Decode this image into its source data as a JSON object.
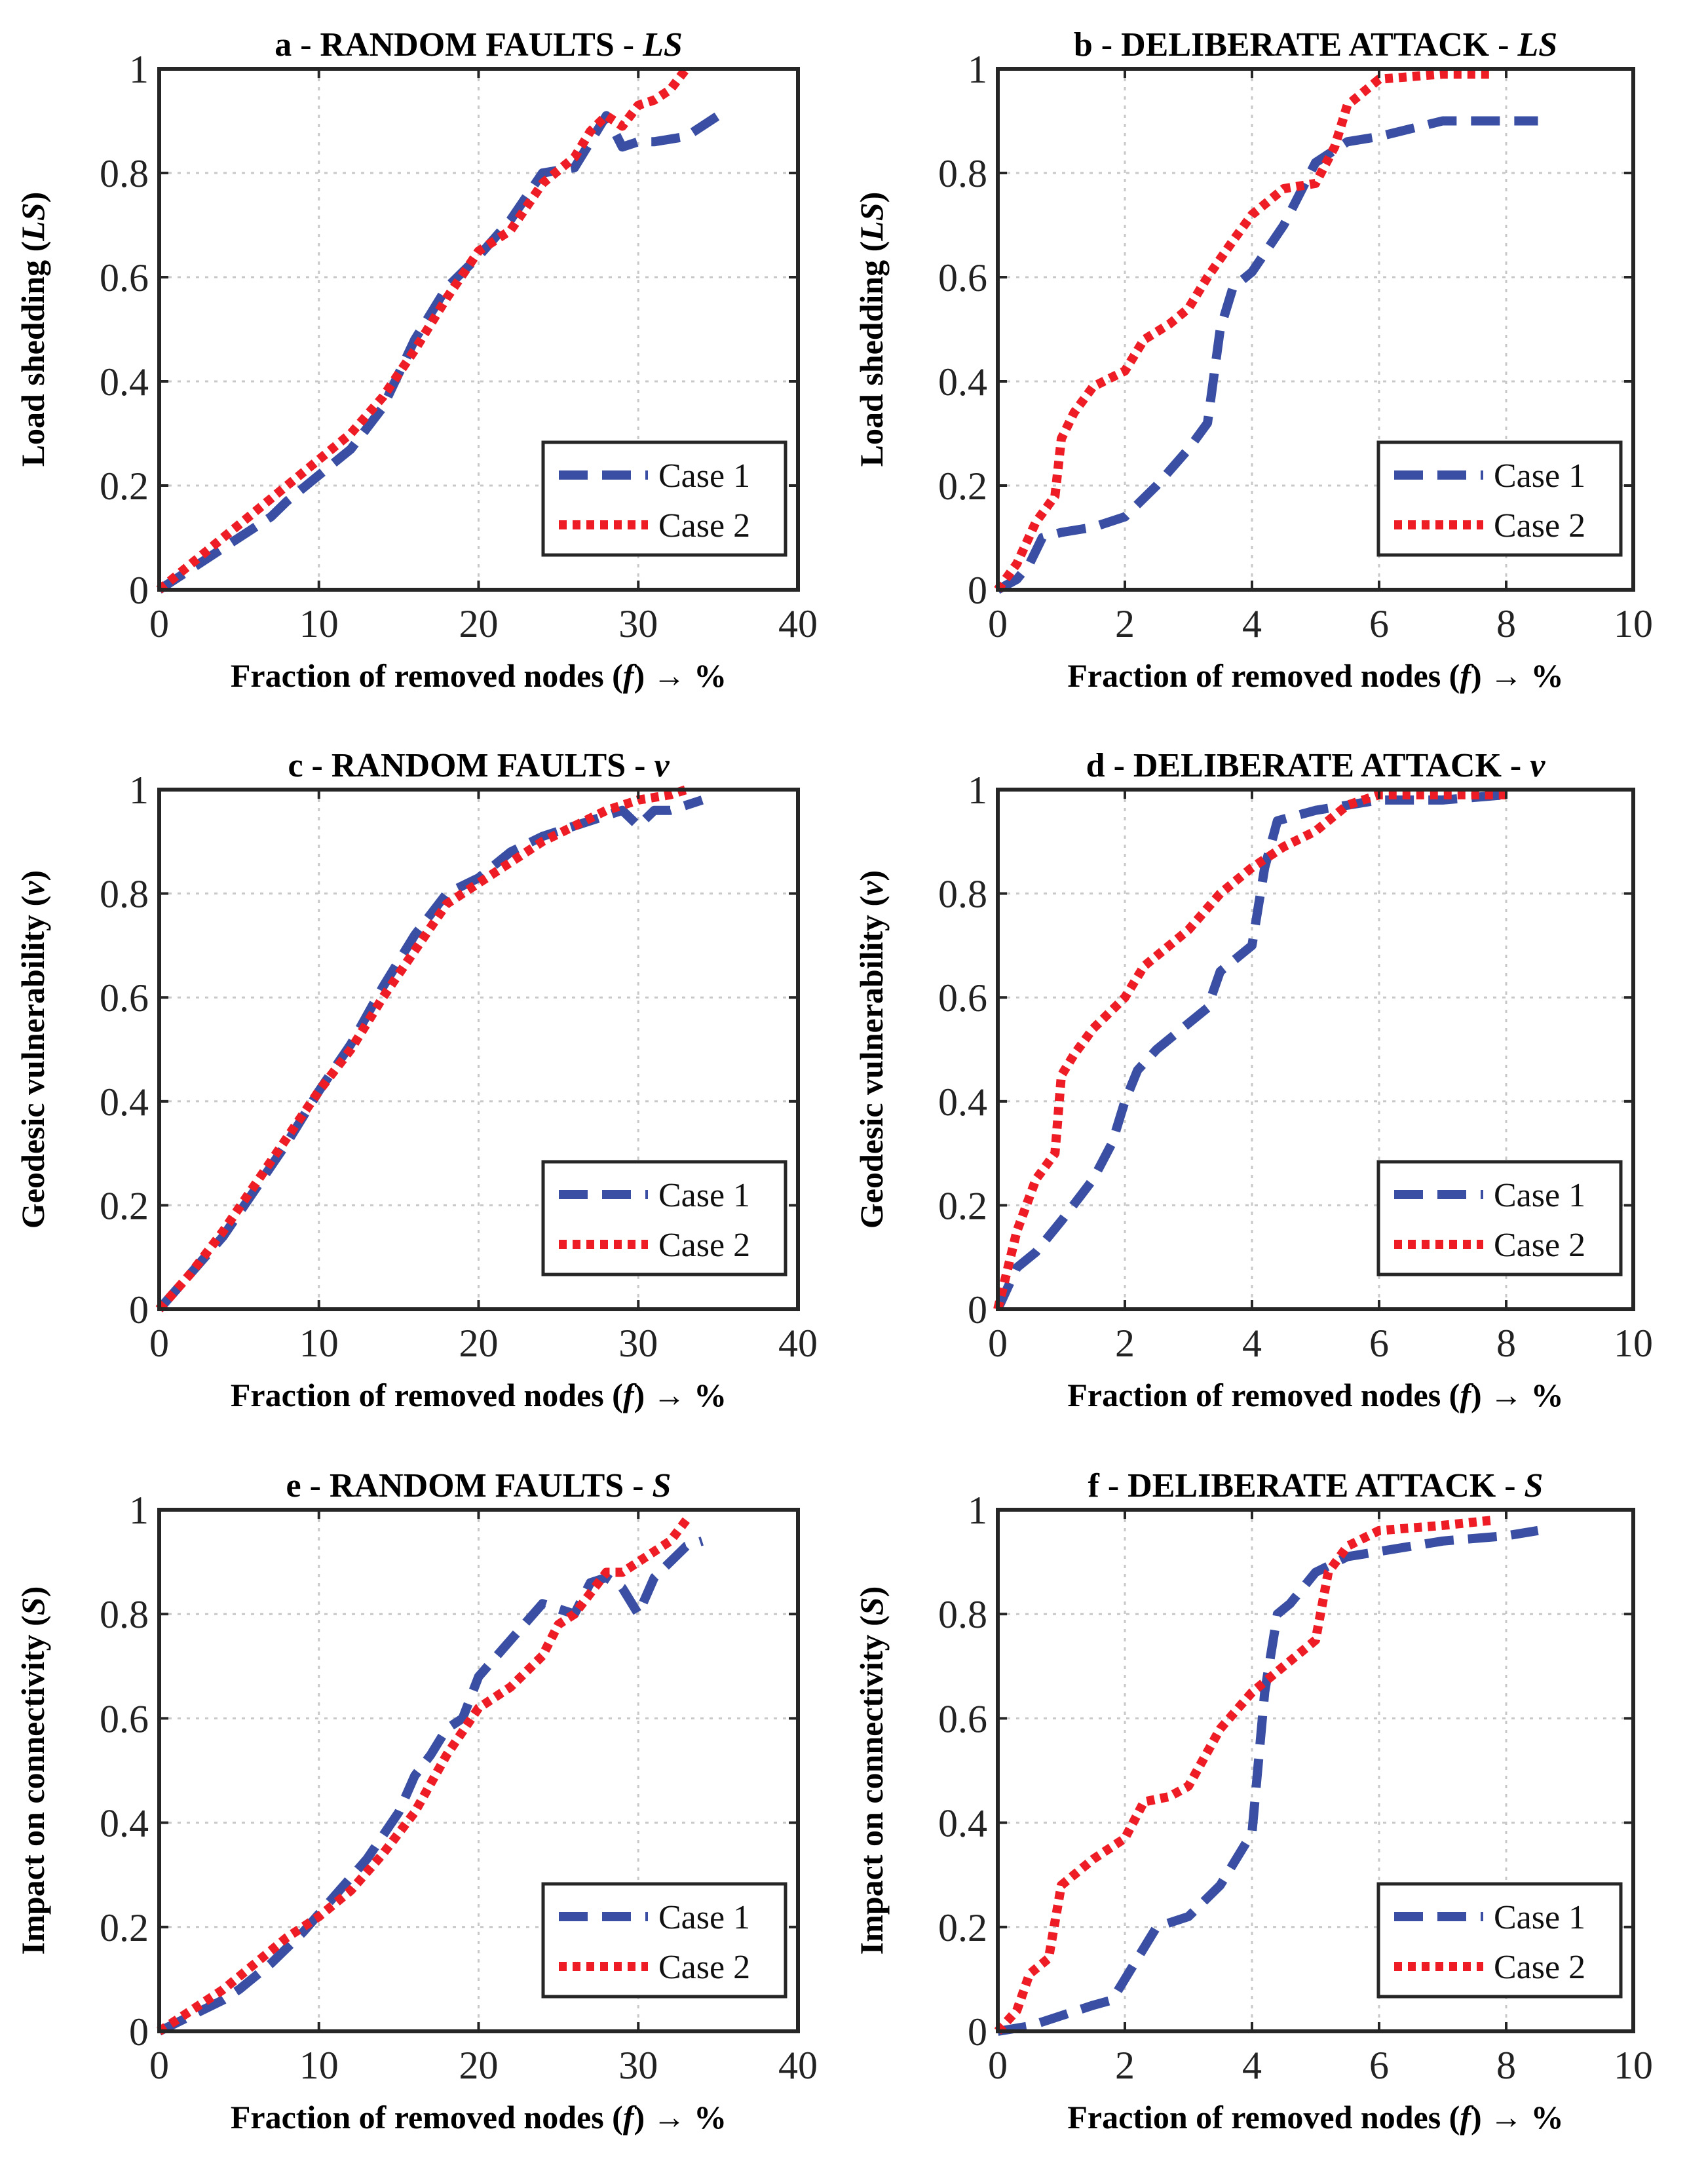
{
  "colors": {
    "case1": "#3a4fa3",
    "case2": "#ee1c25",
    "axis": "#262626",
    "grid": "#c8c8c8"
  },
  "chart_data": [
    {
      "id": "a",
      "type": "line",
      "title": "a - RANDOM FAULTS - ",
      "title_symbol": "LS",
      "ylabel": "Load shedding (",
      "ylabel_symbol": "LS",
      "ylabel_end": ")",
      "xlabel": "Fraction of removed nodes (",
      "xlabel_symbol": "f",
      "xlabel_end": ") → %",
      "xlim": [
        0,
        40
      ],
      "ylim": [
        0,
        1
      ],
      "xticks": [
        0,
        10,
        20,
        30,
        40
      ],
      "xtick_labels": [
        "0",
        "10",
        "20",
        "30",
        "40"
      ],
      "yticks": [
        0,
        0.2,
        0.4,
        0.6,
        0.8,
        1
      ],
      "ytick_labels": [
        "0",
        "0.2",
        "0.4",
        "0.6",
        "0.8",
        "1"
      ],
      "grid": true,
      "legend": "bottom-right",
      "series": [
        {
          "name": "Case 1",
          "x": [
            0,
            2,
            4,
            5,
            7,
            8,
            10,
            12,
            14,
            16,
            18,
            20,
            22,
            24,
            26,
            27,
            28,
            29,
            30,
            31,
            33,
            35
          ],
          "y": [
            0,
            0.04,
            0.08,
            0.1,
            0.14,
            0.17,
            0.22,
            0.27,
            0.35,
            0.48,
            0.58,
            0.64,
            0.71,
            0.8,
            0.81,
            0.86,
            0.91,
            0.85,
            0.86,
            0.86,
            0.87,
            0.91
          ]
        },
        {
          "name": "Case 2",
          "x": [
            0,
            2,
            4,
            6,
            8,
            10,
            12,
            14,
            16,
            18,
            20,
            22,
            24,
            26,
            27,
            28,
            29,
            30,
            31,
            32,
            33
          ],
          "y": [
            0,
            0.05,
            0.1,
            0.15,
            0.2,
            0.25,
            0.3,
            0.37,
            0.46,
            0.56,
            0.65,
            0.69,
            0.78,
            0.83,
            0.88,
            0.91,
            0.89,
            0.93,
            0.94,
            0.96,
            1.0
          ]
        }
      ]
    },
    {
      "id": "b",
      "type": "line",
      "title": "b - DELIBERATE ATTACK - ",
      "title_symbol": "LS",
      "ylabel": "Load shedding (",
      "ylabel_symbol": "LS",
      "ylabel_end": ")",
      "xlabel": "Fraction of removed nodes (",
      "xlabel_symbol": "f",
      "xlabel_end": ") → %",
      "xlim": [
        0,
        10
      ],
      "ylim": [
        0,
        1
      ],
      "xticks": [
        0,
        2,
        4,
        6,
        8,
        10
      ],
      "xtick_labels": [
        "0",
        "2",
        "4",
        "6",
        "8",
        "10"
      ],
      "yticks": [
        0,
        0.2,
        0.4,
        0.6,
        0.8,
        1
      ],
      "ytick_labels": [
        "0",
        "0.2",
        "0.4",
        "0.6",
        "0.8",
        "1"
      ],
      "grid": true,
      "legend": "bottom-right",
      "series": [
        {
          "name": "Case 1",
          "x": [
            0,
            0.3,
            0.5,
            0.7,
            1.0,
            1.5,
            2.0,
            2.5,
            3.0,
            3.3,
            3.5,
            3.7,
            4.0,
            4.5,
            5.0,
            5.5,
            6.0,
            7.0,
            8.0,
            8.5
          ],
          "y": [
            0,
            0.02,
            0.05,
            0.1,
            0.11,
            0.12,
            0.14,
            0.2,
            0.27,
            0.32,
            0.5,
            0.58,
            0.61,
            0.7,
            0.82,
            0.86,
            0.87,
            0.9,
            0.9,
            0.9
          ]
        },
        {
          "name": "Case 2",
          "x": [
            0,
            0.3,
            0.6,
            0.9,
            1.0,
            1.2,
            1.5,
            2.0,
            2.3,
            2.7,
            3.0,
            3.3,
            3.7,
            4.0,
            4.5,
            5.0,
            5.3,
            5.5,
            6.0,
            7.0,
            7.8
          ],
          "y": [
            0,
            0.05,
            0.13,
            0.18,
            0.29,
            0.34,
            0.39,
            0.42,
            0.48,
            0.51,
            0.54,
            0.6,
            0.67,
            0.72,
            0.77,
            0.78,
            0.85,
            0.93,
            0.98,
            0.99,
            0.99
          ]
        }
      ]
    },
    {
      "id": "c",
      "type": "line",
      "title": "c - RANDOM FAULTS - ",
      "title_symbol": "ν",
      "ylabel": "Geodesic vulnerability (",
      "ylabel_symbol": "ν",
      "ylabel_end": ")",
      "xlabel": "Fraction of removed nodes (",
      "xlabel_symbol": "f",
      "xlabel_end": ") → %",
      "xlim": [
        0,
        40
      ],
      "ylim": [
        0,
        1
      ],
      "xticks": [
        0,
        10,
        20,
        30,
        40
      ],
      "xtick_labels": [
        "0",
        "10",
        "20",
        "30",
        "40"
      ],
      "yticks": [
        0,
        0.2,
        0.4,
        0.6,
        0.8,
        1
      ],
      "ytick_labels": [
        "0",
        "0.2",
        "0.4",
        "0.6",
        "0.8",
        "1"
      ],
      "grid": true,
      "legend": "bottom-right",
      "series": [
        {
          "name": "Case 1",
          "x": [
            0,
            2,
            4,
            6,
            8,
            10,
            12,
            14,
            16,
            18,
            20,
            22,
            24,
            26,
            28,
            29,
            30,
            31,
            32,
            34
          ],
          "y": [
            0,
            0.07,
            0.14,
            0.23,
            0.32,
            0.42,
            0.51,
            0.62,
            0.72,
            0.8,
            0.83,
            0.88,
            0.91,
            0.93,
            0.95,
            0.96,
            0.93,
            0.96,
            0.96,
            0.98
          ]
        },
        {
          "name": "Case 2",
          "x": [
            0,
            2,
            4,
            6,
            8,
            10,
            12,
            14,
            16,
            18,
            20,
            22,
            24,
            26,
            28,
            30,
            32,
            33
          ],
          "y": [
            0,
            0.07,
            0.15,
            0.24,
            0.33,
            0.42,
            0.5,
            0.6,
            0.69,
            0.78,
            0.82,
            0.86,
            0.9,
            0.93,
            0.96,
            0.98,
            0.99,
            1.0
          ]
        }
      ]
    },
    {
      "id": "d",
      "type": "line",
      "title": "d - DELIBERATE ATTACK - ",
      "title_symbol": "ν",
      "ylabel": "Geodesic vulnerability (",
      "ylabel_symbol": "ν",
      "ylabel_end": ")",
      "xlabel": "Fraction of removed nodes (",
      "xlabel_symbol": "f",
      "xlabel_end": ") → %",
      "xlim": [
        0,
        10
      ],
      "ylim": [
        0,
        1
      ],
      "xticks": [
        0,
        2,
        4,
        6,
        8,
        10
      ],
      "xtick_labels": [
        "0",
        "2",
        "4",
        "6",
        "8",
        "10"
      ],
      "yticks": [
        0,
        0.2,
        0.4,
        0.6,
        0.8,
        1
      ],
      "ytick_labels": [
        "0",
        "0.2",
        "0.4",
        "0.6",
        "0.8",
        "1"
      ],
      "grid": true,
      "legend": "bottom-right",
      "series": [
        {
          "name": "Case 1",
          "x": [
            0,
            0.3,
            0.6,
            1.0,
            1.5,
            1.8,
            2.0,
            2.2,
            2.5,
            3.0,
            3.3,
            3.5,
            3.8,
            4.0,
            4.2,
            4.4,
            5.0,
            6.0,
            7.0,
            8.0
          ],
          "y": [
            0,
            0.08,
            0.11,
            0.17,
            0.25,
            0.32,
            0.4,
            0.46,
            0.5,
            0.55,
            0.58,
            0.65,
            0.68,
            0.7,
            0.85,
            0.94,
            0.96,
            0.98,
            0.98,
            0.99
          ]
        },
        {
          "name": "Case 2",
          "x": [
            0,
            0.3,
            0.6,
            0.9,
            1.0,
            1.2,
            1.5,
            2.0,
            2.3,
            2.7,
            3.0,
            3.5,
            4.0,
            4.5,
            5.0,
            5.5,
            6.0,
            7.0,
            8.0
          ],
          "y": [
            0,
            0.15,
            0.25,
            0.3,
            0.45,
            0.49,
            0.54,
            0.6,
            0.66,
            0.7,
            0.73,
            0.8,
            0.85,
            0.89,
            0.92,
            0.97,
            0.99,
            0.99,
            0.99
          ]
        }
      ]
    },
    {
      "id": "e",
      "type": "line",
      "title": "e - RANDOM FAULTS - ",
      "title_symbol": "S",
      "ylabel": "Impact on connectivity (",
      "ylabel_symbol": "S",
      "ylabel_end": ")",
      "xlabel": "Fraction of removed nodes (",
      "xlabel_symbol": "f",
      "xlabel_end": ") → %",
      "xlim": [
        0,
        40
      ],
      "ylim": [
        0,
        1
      ],
      "xticks": [
        0,
        10,
        20,
        30,
        40
      ],
      "xtick_labels": [
        "0",
        "10",
        "20",
        "30",
        "40"
      ],
      "yticks": [
        0,
        0.2,
        0.4,
        0.6,
        0.8,
        1
      ],
      "ytick_labels": [
        "0",
        "0.2",
        "0.4",
        "0.6",
        "0.8",
        "1"
      ],
      "grid": true,
      "legend": "bottom-right",
      "series": [
        {
          "name": "Case 1",
          "x": [
            0,
            2,
            4,
            5,
            7,
            9,
            11,
            13,
            15,
            16,
            17,
            18,
            19,
            20,
            22,
            24,
            26,
            27,
            28,
            29,
            30,
            31,
            32,
            33,
            34
          ],
          "y": [
            0,
            0.03,
            0.06,
            0.08,
            0.13,
            0.19,
            0.26,
            0.33,
            0.42,
            0.49,
            0.53,
            0.58,
            0.6,
            0.68,
            0.75,
            0.82,
            0.8,
            0.86,
            0.87,
            0.85,
            0.8,
            0.87,
            0.9,
            0.93,
            0.94
          ]
        },
        {
          "name": "Case 2",
          "x": [
            0,
            2,
            4,
            6,
            8,
            10,
            12,
            14,
            16,
            18,
            20,
            22,
            24,
            25,
            26,
            27,
            28,
            29,
            30,
            31,
            32,
            33
          ],
          "y": [
            0,
            0.04,
            0.08,
            0.13,
            0.18,
            0.22,
            0.27,
            0.34,
            0.42,
            0.53,
            0.62,
            0.66,
            0.72,
            0.78,
            0.8,
            0.84,
            0.88,
            0.88,
            0.9,
            0.92,
            0.94,
            0.98
          ]
        }
      ]
    },
    {
      "id": "f",
      "type": "line",
      "title": "f - DELIBERATE ATTACK - ",
      "title_symbol": "S",
      "ylabel": "Impact on connectivity (",
      "ylabel_symbol": "S",
      "ylabel_end": ")",
      "xlabel": "Fraction of removed nodes (",
      "xlabel_symbol": "f",
      "xlabel_end": ") → %",
      "xlim": [
        0,
        10
      ],
      "ylim": [
        0,
        1
      ],
      "xticks": [
        0,
        2,
        4,
        6,
        8,
        10
      ],
      "xtick_labels": [
        "0",
        "2",
        "4",
        "6",
        "8",
        "10"
      ],
      "yticks": [
        0,
        0.2,
        0.4,
        0.6,
        0.8,
        1
      ],
      "ytick_labels": [
        "0",
        "0.2",
        "0.4",
        "0.6",
        "0.8",
        "1"
      ],
      "grid": true,
      "legend": "bottom-right",
      "series": [
        {
          "name": "Case 1",
          "x": [
            0,
            0.5,
            1.0,
            1.5,
            1.8,
            2.0,
            2.5,
            3.0,
            3.5,
            3.8,
            4.0,
            4.2,
            4.4,
            4.6,
            5.0,
            5.5,
            6.0,
            7.0,
            8.0,
            8.5
          ],
          "y": [
            0,
            0.01,
            0.03,
            0.05,
            0.06,
            0.1,
            0.2,
            0.22,
            0.28,
            0.34,
            0.38,
            0.65,
            0.8,
            0.82,
            0.88,
            0.91,
            0.92,
            0.94,
            0.95,
            0.96
          ]
        },
        {
          "name": "Case 2",
          "x": [
            0,
            0.3,
            0.5,
            0.8,
            1.0,
            1.2,
            1.5,
            2.0,
            2.3,
            2.7,
            3.0,
            3.5,
            4.0,
            4.5,
            5.0,
            5.2,
            5.5,
            6.0,
            7.0,
            7.8
          ],
          "y": [
            0,
            0.04,
            0.11,
            0.14,
            0.28,
            0.3,
            0.33,
            0.37,
            0.44,
            0.45,
            0.47,
            0.58,
            0.65,
            0.7,
            0.75,
            0.88,
            0.93,
            0.96,
            0.97,
            0.98
          ]
        }
      ]
    }
  ]
}
